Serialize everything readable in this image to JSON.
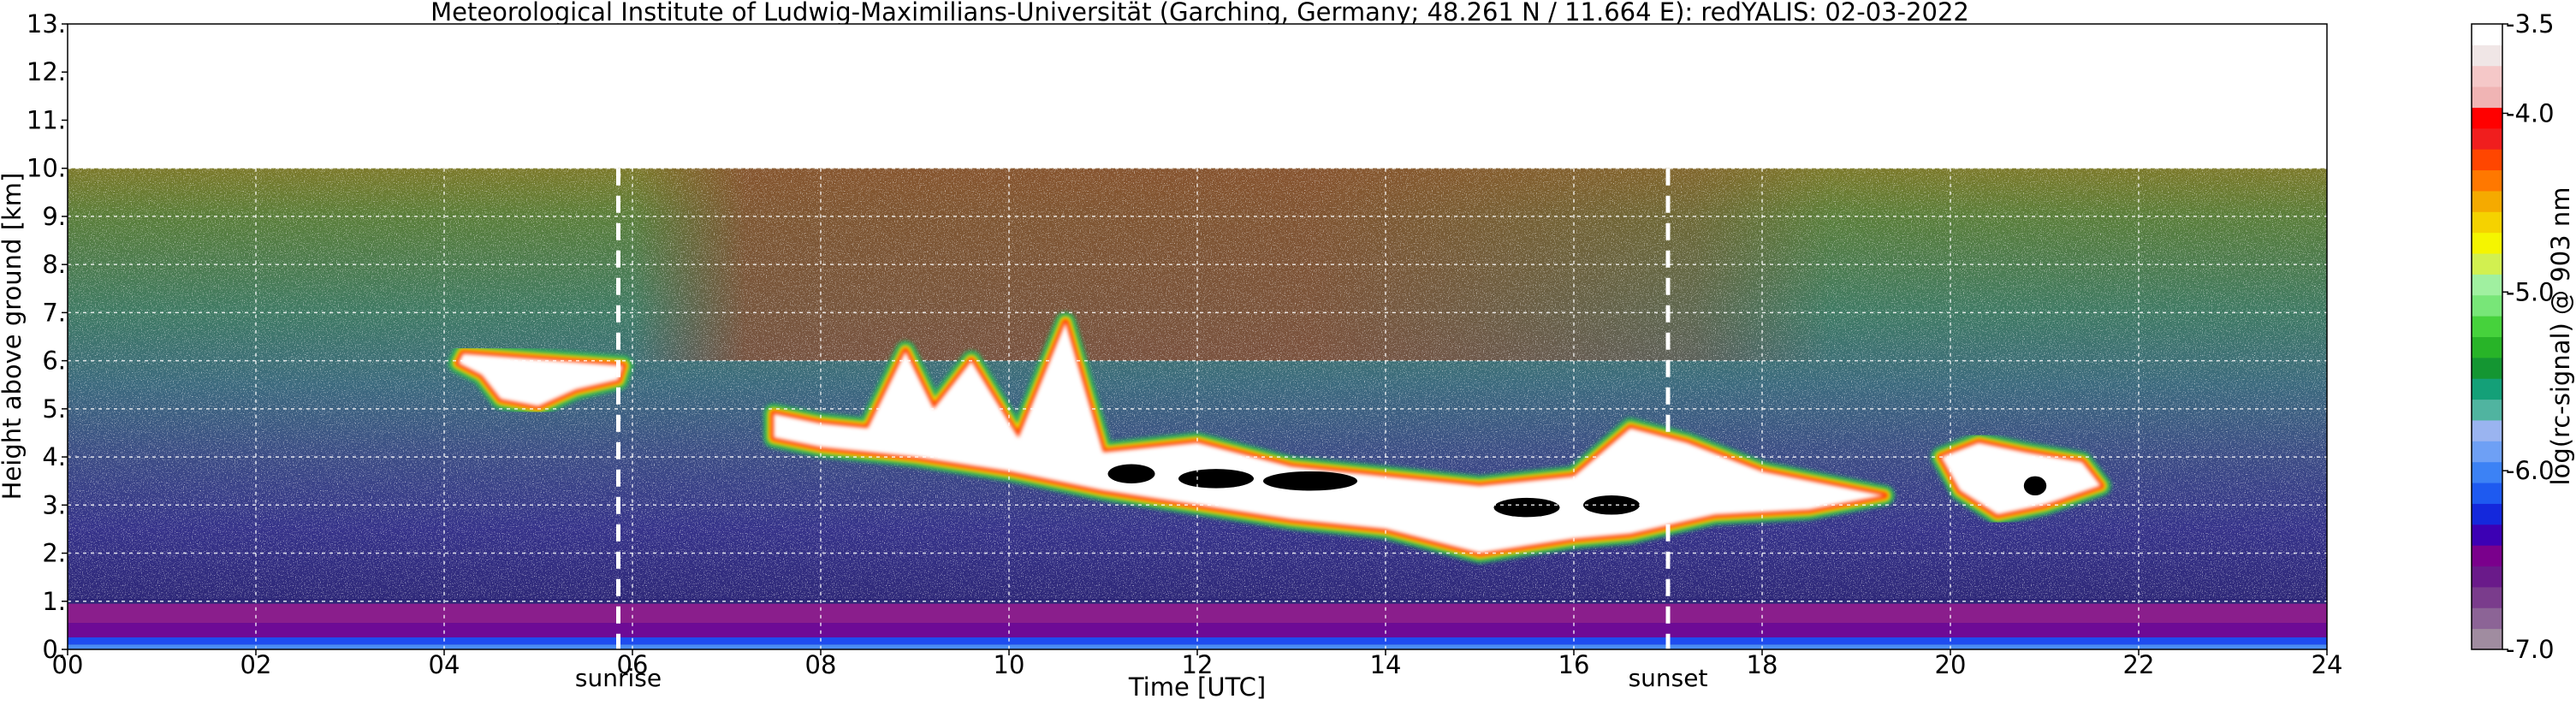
{
  "chart_data": {
    "type": "heatmap",
    "title": "Meteorological Institute of Ludwig-Maximilians-Universität (Garching, Germany; 48.261 N / 11.664 E):    redYALIS: 02-03-2022",
    "xlabel": "Time [UTC]",
    "ylabel": "Height above ground [km]",
    "xlim": [
      0,
      24
    ],
    "ylim": [
      0,
      13
    ],
    "x_ticks": [
      0,
      2,
      4,
      6,
      8,
      10,
      12,
      14,
      16,
      18,
      20,
      22,
      24
    ],
    "x_tick_labels": [
      "00",
      "02",
      "04",
      "06",
      "08",
      "10",
      "12",
      "14",
      "16",
      "18",
      "20",
      "22",
      "24"
    ],
    "y_ticks": [
      0,
      1,
      2,
      3,
      4,
      5,
      6,
      7,
      8,
      9,
      10,
      11,
      12,
      13
    ],
    "y_tick_labels": [
      "0.",
      "1.",
      "2.",
      "3.",
      "4.",
      "5.",
      "6.",
      "7.",
      "8.",
      "9.",
      "10.",
      "11.",
      "12.",
      "13."
    ],
    "grid": true,
    "data_top_km": 10,
    "annotations": [
      {
        "label": "sunrise",
        "x": 5.85
      },
      {
        "label": "sunset",
        "x": 17.0
      }
    ],
    "colorbar": {
      "label": "log(rc-signal) @ 903 nm",
      "range": [
        -7.0,
        -3.5
      ],
      "ticks": [
        -7.0,
        -6.0,
        -5.0,
        -4.0,
        -3.5
      ],
      "tick_labels": [
        "-7.0",
        "-6.0",
        "-5.0",
        "-4.0",
        "-3.5"
      ],
      "colors": [
        "#a08ca0",
        "#8c6496",
        "#7a3c8c",
        "#6a1a8a",
        "#7a008c",
        "#3c00b4",
        "#1428dc",
        "#1e5af0",
        "#3c82f5",
        "#6ea0f5",
        "#9ab4f0",
        "#50b4a0",
        "#14a078",
        "#149632",
        "#28b428",
        "#46d23c",
        "#78e678",
        "#a0f0a0",
        "#d2f050",
        "#f5f500",
        "#f5d200",
        "#f5aa00",
        "#ff7800",
        "#ff4600",
        "#f01e1e",
        "#ff0000",
        "#f0b4b4",
        "#f5c8c8",
        "#f0e6e6",
        "#ffffff"
      ]
    },
    "features": [
      {
        "name": "boundary layer",
        "x_range": [
          0,
          24
        ],
        "height_km": [
          0.1,
          0.95
        ]
      },
      {
        "name": "early cloud layer",
        "x_range": [
          4.2,
          5.9
        ],
        "height_km": [
          4.9,
          6.15
        ]
      },
      {
        "name": "main cloud band",
        "x_range": [
          7.0,
          19.3
        ],
        "height_km": [
          1.7,
          7.3
        ]
      },
      {
        "name": "evening cloud",
        "x_range": [
          19.8,
          21.6
        ],
        "height_km": [
          2.8,
          4.3
        ]
      }
    ]
  }
}
